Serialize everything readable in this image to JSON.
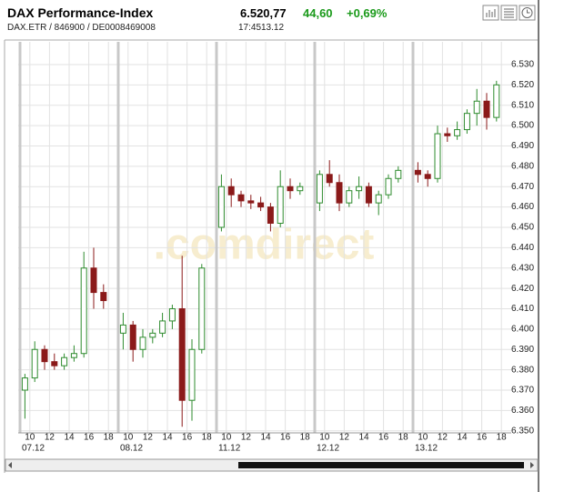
{
  "header": {
    "title": "DAX Performance-Index",
    "price": "6.520,77",
    "change": "44,60",
    "change_pct": "+0,69%",
    "identifiers": "DAX.ETR / 846900 / DE0008469008",
    "time": "17:45",
    "date": "13.12"
  },
  "chart_data": {
    "type": "candlestick",
    "watermark": ".comdirect",
    "xlim": [
      9,
      19
    ],
    "xticks": [
      10,
      12,
      14,
      16,
      18
    ],
    "ylim": [
      6349,
      6534
    ],
    "yticks": [
      {
        "value": 6350,
        "label": "6.350"
      },
      {
        "value": 6360,
        "label": "6.360"
      },
      {
        "value": 6370,
        "label": "6.370"
      },
      {
        "value": 6380,
        "label": "6.380"
      },
      {
        "value": 6390,
        "label": "6.390"
      },
      {
        "value": 6400,
        "label": "6.400"
      },
      {
        "value": 6410,
        "label": "6.410"
      },
      {
        "value": 6420,
        "label": "6.420"
      },
      {
        "value": 6430,
        "label": "6.430"
      },
      {
        "value": 6440,
        "label": "6.440"
      },
      {
        "value": 6450,
        "label": "6.450"
      },
      {
        "value": 6460,
        "label": "6.460"
      },
      {
        "value": 6470,
        "label": "6.470"
      },
      {
        "value": 6480,
        "label": "6.480"
      },
      {
        "value": 6490,
        "label": "6.490"
      },
      {
        "value": 6500,
        "label": "6.500"
      },
      {
        "value": 6510,
        "label": "6.510"
      },
      {
        "value": 6520,
        "label": "6.520"
      },
      {
        "value": 6530,
        "label": "6.530"
      }
    ],
    "grid": true,
    "up_color": "#2e8b2e",
    "down_color": "#8b1a1a",
    "days": [
      {
        "label": "07.12",
        "candles": [
          {
            "hour": 9,
            "open": 6370,
            "high": 6378,
            "low": 6356,
            "close": 6376
          },
          {
            "hour": 10,
            "open": 6376,
            "high": 6394,
            "low": 6374,
            "close": 6390
          },
          {
            "hour": 11,
            "open": 6390,
            "high": 6392,
            "low": 6380,
            "close": 6384
          },
          {
            "hour": 12,
            "open": 6384,
            "high": 6388,
            "low": 6380,
            "close": 6382
          },
          {
            "hour": 13,
            "open": 6382,
            "high": 6388,
            "low": 6380,
            "close": 6386
          },
          {
            "hour": 14,
            "open": 6386,
            "high": 6392,
            "low": 6384,
            "close": 6388
          },
          {
            "hour": 15,
            "open": 6388,
            "high": 6438,
            "low": 6386,
            "close": 6430
          },
          {
            "hour": 16,
            "open": 6430,
            "high": 6440,
            "low": 6410,
            "close": 6418
          },
          {
            "hour": 17,
            "open": 6418,
            "high": 6422,
            "low": 6410,
            "close": 6414
          }
        ]
      },
      {
        "label": "08.12",
        "candles": [
          {
            "hour": 9,
            "open": 6398,
            "high": 6408,
            "low": 6390,
            "close": 6402
          },
          {
            "hour": 10,
            "open": 6402,
            "high": 6404,
            "low": 6384,
            "close": 6390
          },
          {
            "hour": 11,
            "open": 6390,
            "high": 6400,
            "low": 6386,
            "close": 6396
          },
          {
            "hour": 12,
            "open": 6396,
            "high": 6400,
            "low": 6393,
            "close": 6398
          },
          {
            "hour": 13,
            "open": 6398,
            "high": 6408,
            "low": 6396,
            "close": 6404
          },
          {
            "hour": 14,
            "open": 6404,
            "high": 6412,
            "low": 6400,
            "close": 6410
          },
          {
            "hour": 15,
            "open": 6410,
            "high": 6436,
            "low": 6352,
            "close": 6365
          },
          {
            "hour": 16,
            "open": 6365,
            "high": 6395,
            "low": 6355,
            "close": 6390
          },
          {
            "hour": 17,
            "open": 6390,
            "high": 6432,
            "low": 6388,
            "close": 6430
          }
        ]
      },
      {
        "label": "11.12",
        "candles": [
          {
            "hour": 9,
            "open": 6450,
            "high": 6476,
            "low": 6448,
            "close": 6470
          },
          {
            "hour": 10,
            "open": 6470,
            "high": 6474,
            "low": 6460,
            "close": 6466
          },
          {
            "hour": 11,
            "open": 6466,
            "high": 6468,
            "low": 6460,
            "close": 6463
          },
          {
            "hour": 12,
            "open": 6463,
            "high": 6466,
            "low": 6459,
            "close": 6462
          },
          {
            "hour": 13,
            "open": 6462,
            "high": 6465,
            "low": 6458,
            "close": 6460
          },
          {
            "hour": 14,
            "open": 6460,
            "high": 6462,
            "low": 6448,
            "close": 6452
          },
          {
            "hour": 15,
            "open": 6452,
            "high": 6478,
            "low": 6450,
            "close": 6470
          },
          {
            "hour": 16,
            "open": 6470,
            "high": 6474,
            "low": 6464,
            "close": 6468
          },
          {
            "hour": 17,
            "open": 6468,
            "high": 6472,
            "low": 6466,
            "close": 6470
          }
        ]
      },
      {
        "label": "12.12",
        "candles": [
          {
            "hour": 9,
            "open": 6462,
            "high": 6478,
            "low": 6458,
            "close": 6476
          },
          {
            "hour": 10,
            "open": 6476,
            "high": 6483,
            "low": 6470,
            "close": 6472
          },
          {
            "hour": 11,
            "open": 6472,
            "high": 6476,
            "low": 6458,
            "close": 6462
          },
          {
            "hour": 12,
            "open": 6462,
            "high": 6470,
            "low": 6460,
            "close": 6468
          },
          {
            "hour": 13,
            "open": 6468,
            "high": 6475,
            "low": 6464,
            "close": 6470
          },
          {
            "hour": 14,
            "open": 6470,
            "high": 6472,
            "low": 6460,
            "close": 6462
          },
          {
            "hour": 15,
            "open": 6462,
            "high": 6468,
            "low": 6456,
            "close": 6466
          },
          {
            "hour": 16,
            "open": 6466,
            "high": 6476,
            "low": 6464,
            "close": 6474
          },
          {
            "hour": 17,
            "open": 6474,
            "high": 6480,
            "low": 6472,
            "close": 6478
          }
        ]
      },
      {
        "label": "13.12",
        "candles": [
          {
            "hour": 9,
            "open": 6478,
            "high": 6482,
            "low": 6472,
            "close": 6476
          },
          {
            "hour": 10,
            "open": 6476,
            "high": 6478,
            "low": 6470,
            "close": 6474
          },
          {
            "hour": 11,
            "open": 6474,
            "high": 6500,
            "low": 6472,
            "close": 6496
          },
          {
            "hour": 12,
            "open": 6496,
            "high": 6499,
            "low": 6492,
            "close": 6495
          },
          {
            "hour": 13,
            "open": 6495,
            "high": 6502,
            "low": 6493,
            "close": 6498
          },
          {
            "hour": 14,
            "open": 6498,
            "high": 6508,
            "low": 6496,
            "close": 6506
          },
          {
            "hour": 15,
            "open": 6506,
            "high": 6518,
            "low": 6500,
            "close": 6512
          },
          {
            "hour": 16,
            "open": 6512,
            "high": 6516,
            "low": 6498,
            "close": 6504
          },
          {
            "hour": 17,
            "open": 6504,
            "high": 6522,
            "low": 6502,
            "close": 6520
          }
        ]
      }
    ]
  }
}
